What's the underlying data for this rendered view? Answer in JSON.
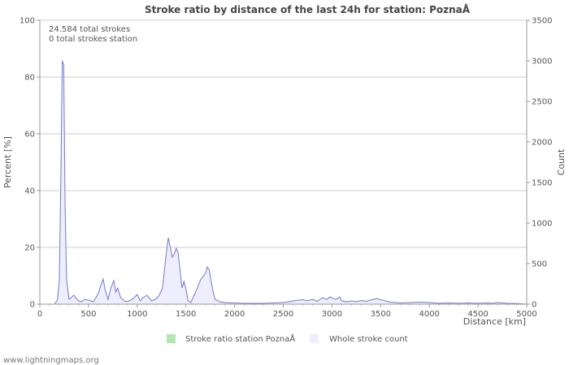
{
  "chart_data": {
    "type": "area",
    "title": "Stroke ratio by distance of the last 24h for station: PoznaÅ",
    "xlabel": "Distance   [km]",
    "ylabel_left": "Percent   [%]",
    "ylabel_right": "Count",
    "xlim": [
      0,
      5000
    ],
    "ylim_left": [
      0,
      100
    ],
    "ylim_right": [
      0,
      3500
    ],
    "x_ticks": [
      0,
      500,
      1000,
      1500,
      2000,
      2500,
      3000,
      3500,
      4000,
      4500,
      5000
    ],
    "y_ticks_left": [
      0,
      20,
      40,
      60,
      80,
      100
    ],
    "y_ticks_right": [
      0,
      500,
      1000,
      1500,
      2000,
      2500,
      3000,
      3500
    ],
    "grid": true,
    "annotations": [
      "24.584 total strokes",
      "0 total strokes station"
    ],
    "series": [
      {
        "name": "Stroke ratio station PoznaÅ",
        "color": "#b3e6b3",
        "values": []
      },
      {
        "name": "Whole stroke count",
        "color": "#eeeeff",
        "line_color": "#7777cc",
        "x": [
          150,
          180,
          200,
          215,
          230,
          245,
          260,
          275,
          300,
          330,
          350,
          380,
          400,
          430,
          460,
          500,
          550,
          600,
          630,
          650,
          670,
          700,
          730,
          760,
          780,
          800,
          830,
          870,
          900,
          950,
          1000,
          1030,
          1060,
          1100,
          1150,
          1200,
          1230,
          1260,
          1280,
          1300,
          1320,
          1340,
          1360,
          1380,
          1400,
          1420,
          1440,
          1460,
          1480,
          1500,
          1520,
          1550,
          1600,
          1650,
          1700,
          1720,
          1740,
          1760,
          1780,
          1800,
          1850,
          1900,
          2000,
          2100,
          2200,
          2300,
          2400,
          2500,
          2550,
          2600,
          2700,
          2750,
          2800,
          2850,
          2900,
          2950,
          2980,
          3000,
          3030,
          3060,
          3080,
          3100,
          3150,
          3200,
          3250,
          3300,
          3350,
          3400,
          3430,
          3460,
          3500,
          3550,
          3600,
          3650,
          3700,
          3800,
          3900,
          4000,
          4100,
          4200,
          4300,
          4400,
          4500,
          4600,
          4650,
          4700,
          4800,
          4900,
          5000
        ],
        "values": [
          0,
          50,
          300,
          1500,
          3000,
          2950,
          1200,
          300,
          60,
          90,
          110,
          60,
          40,
          30,
          60,
          50,
          30,
          130,
          250,
          310,
          180,
          60,
          200,
          290,
          150,
          200,
          80,
          40,
          30,
          60,
          120,
          40,
          80,
          110,
          40,
          70,
          120,
          200,
          420,
          640,
          820,
          700,
          580,
          620,
          690,
          640,
          420,
          200,
          280,
          190,
          50,
          20,
          150,
          300,
          380,
          460,
          420,
          280,
          150,
          60,
          30,
          20,
          15,
          10,
          10,
          10,
          15,
          20,
          30,
          40,
          55,
          40,
          60,
          35,
          80,
          60,
          90,
          80,
          60,
          70,
          90,
          40,
          30,
          40,
          30,
          45,
          35,
          50,
          60,
          70,
          55,
          40,
          25,
          20,
          15,
          20,
          25,
          20,
          10,
          15,
          10,
          15,
          10,
          15,
          10,
          20,
          10,
          8,
          0
        ]
      }
    ]
  },
  "footer": "www.lightningmaps.org"
}
